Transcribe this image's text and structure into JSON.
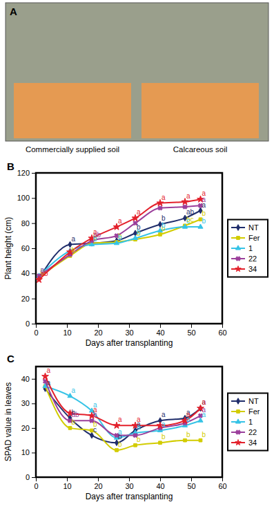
{
  "photo": {
    "panel": "A",
    "captions": [
      "Commercially supplied soil",
      "Calcareous soil"
    ]
  },
  "chart_data": [
    {
      "type": "line",
      "panel": "B",
      "x_label": "Days after transplanting",
      "y_label": "Plant height (cm)",
      "x": [
        1,
        11,
        18,
        26,
        32,
        40,
        48,
        53
      ],
      "xlim": [
        0,
        60
      ],
      "xticks": [
        0,
        10,
        20,
        30,
        40,
        50,
        60
      ],
      "ylim": [
        0,
        120
      ],
      "yticks": [
        0,
        20,
        40,
        60,
        80,
        100,
        120
      ],
      "legend": "right",
      "series": [
        {
          "name": "NT",
          "color": "#1f2d6b",
          "marker": "diamond",
          "values": [
            36,
            63,
            64,
            66,
            72,
            79,
            84,
            90
          ],
          "annotations": [
            null,
            "a",
            null,
            null,
            "b",
            "b",
            "ab",
            "a"
          ]
        },
        {
          "name": "Fer",
          "color": "#d2cc00",
          "marker": "square",
          "values": [
            37,
            54,
            64,
            65,
            67,
            71,
            78,
            83
          ],
          "annotations": [
            "b",
            "b",
            "b",
            "b",
            "b",
            "b",
            "bc",
            "b"
          ]
        },
        {
          "name": "1",
          "color": "#36c3e6",
          "marker": "triangle",
          "values": [
            38,
            58,
            63,
            64,
            68,
            74,
            77,
            77
          ],
          "annotations": [
            "a",
            null,
            "b",
            "b",
            "b",
            "b",
            "c",
            "b"
          ]
        },
        {
          "name": "22",
          "color": "#9b3f9b",
          "marker": "x",
          "values": [
            38,
            55,
            66,
            70,
            80,
            92,
            93,
            94
          ],
          "annotations": [
            "a",
            null,
            "ab",
            null,
            null,
            null,
            null,
            "a"
          ]
        },
        {
          "name": "34",
          "color": "#e3202b",
          "marker": "star",
          "values": [
            35,
            57,
            68,
            77,
            84,
            96,
            97,
            99
          ],
          "annotations": [
            "ab",
            null,
            "a",
            "a",
            "a",
            "a",
            "a",
            "a"
          ]
        }
      ]
    },
    {
      "type": "line",
      "panel": "C",
      "x_label": "Days after transplanting",
      "y_label": "SPAD value in leaves",
      "x": [
        3,
        11,
        18,
        26,
        32,
        40,
        48,
        53
      ],
      "xlim": [
        0,
        60
      ],
      "xticks": [
        0,
        10,
        20,
        30,
        40,
        50,
        60
      ],
      "ylim": [
        0,
        45
      ],
      "yticks": [
        0,
        10,
        20,
        30,
        40
      ],
      "legend": "right",
      "series": [
        {
          "name": "NT",
          "color": "#1f2d6b",
          "marker": "diamond",
          "values": [
            36,
            24,
            17,
            14,
            19,
            23,
            24,
            28
          ],
          "annotations": [
            "a",
            "b",
            "c",
            "b",
            "a",
            "a",
            "a",
            "a"
          ]
        },
        {
          "name": "Fer",
          "color": "#d2cc00",
          "marker": "square",
          "values": [
            37,
            20,
            19,
            11,
            13,
            14,
            15,
            15
          ],
          "annotations": [
            null,
            "b",
            "b",
            "b",
            "b",
            "b",
            "b",
            "b"
          ]
        },
        {
          "name": "1",
          "color": "#36c3e6",
          "marker": "triangle",
          "values": [
            37,
            33,
            27,
            16,
            18,
            19,
            21,
            23
          ],
          "annotations": [
            null,
            "a",
            "a",
            "a",
            "a",
            "a",
            "a",
            "a"
          ]
        },
        {
          "name": "22",
          "color": "#9b3f9b",
          "marker": "x",
          "values": [
            39,
            23,
            23,
            17,
            17,
            20,
            22,
            25
          ],
          "annotations": [
            null,
            "ab",
            "b",
            null,
            null,
            null,
            null,
            "a"
          ]
        },
        {
          "name": "34",
          "color": "#e3202b",
          "marker": "star",
          "values": [
            41,
            26,
            25,
            21,
            21,
            21,
            23,
            28
          ],
          "annotations": [
            "a",
            null,
            "a",
            "a",
            "a",
            null,
            "a",
            "a"
          ]
        }
      ]
    }
  ]
}
